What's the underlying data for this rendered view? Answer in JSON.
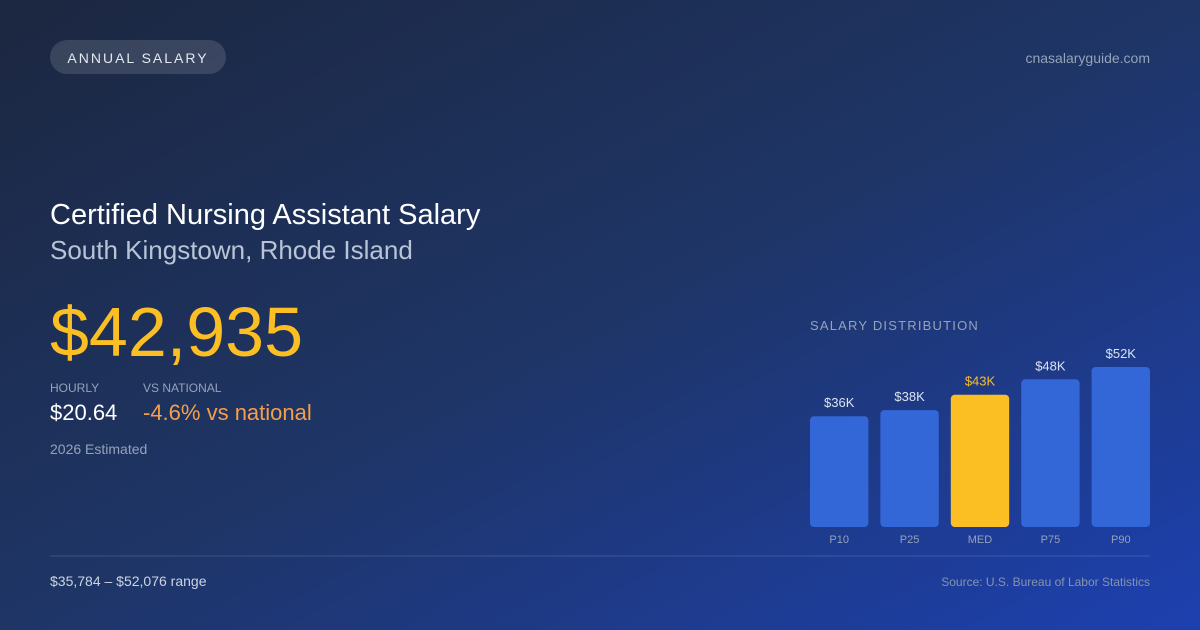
{
  "header": {
    "badge": "ANNUAL SALARY",
    "site": "cnasalaryguide.com"
  },
  "title": "Certified Nursing Assistant Salary",
  "subtitle": "South Kingstown, Rhode Island",
  "salary": "$42,935",
  "stats": [
    {
      "label": "HOURLY",
      "value": "$20.64"
    },
    {
      "label": "VS NATIONAL",
      "value": "-4.6% vs national"
    }
  ],
  "note": "2026 Estimated",
  "footer": {
    "range": "$35,784 – $52,076 range",
    "source": "Source: U.S. Bureau of Labor Statistics"
  },
  "chart_data": {
    "type": "bar",
    "title": "SALARY DISTRIBUTION",
    "categories": [
      "P10",
      "P25",
      "MED",
      "P75",
      "P90"
    ],
    "values": [
      36,
      38,
      43,
      48,
      52
    ],
    "value_labels": [
      "$36K",
      "$38K",
      "$43K",
      "$48K",
      "$52K"
    ],
    "color": "#3366d6",
    "highlight": {
      "index": 2,
      "color": "#fbbf24"
    }
  }
}
